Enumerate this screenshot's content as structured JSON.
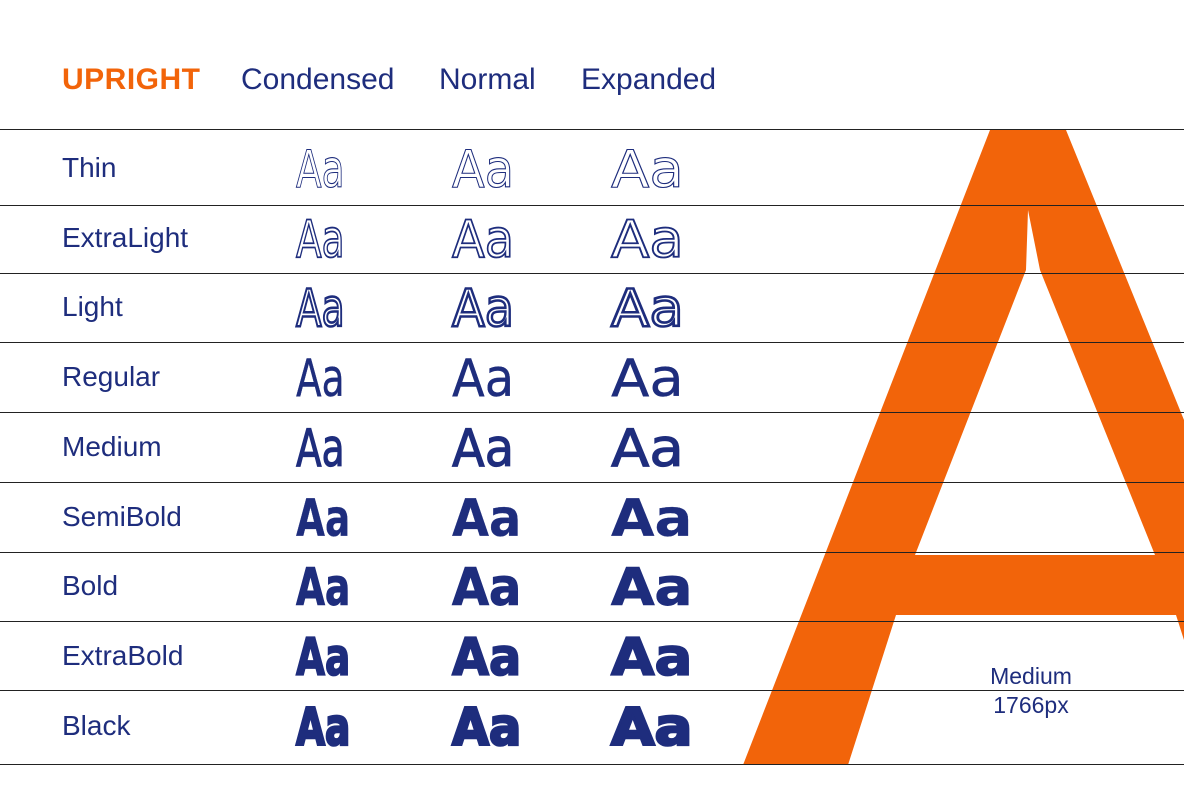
{
  "header": {
    "title": "UPRIGHT",
    "columns": [
      "Condensed",
      "Normal",
      "Expanded"
    ]
  },
  "sample_text": "Aa",
  "weights": [
    "Thin",
    "ExtraLight",
    "Light",
    "Regular",
    "Medium",
    "SemiBold",
    "Bold",
    "ExtraBold",
    "Black"
  ],
  "feature": {
    "weight": "Medium",
    "size": "1766px"
  },
  "colors": {
    "accent": "#f2640a",
    "text": "#1e2d7d",
    "rule": "#222222",
    "background": "#ffffff"
  }
}
